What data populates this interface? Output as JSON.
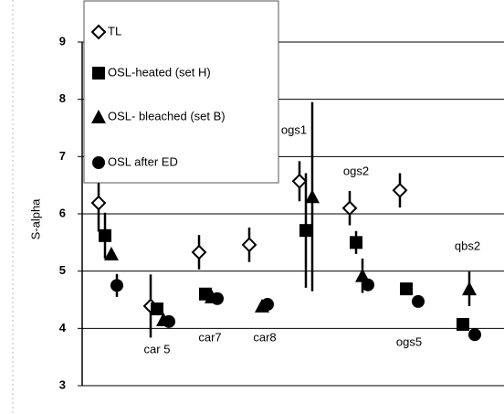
{
  "chart_data": {
    "type": "scatter",
    "y_label": "S-alpha",
    "categories": [
      null,
      "car 5",
      "car7",
      "car8",
      "ogs1",
      "ogs2",
      "ogs5",
      "qbs2"
    ],
    "ylim": [
      3,
      9
    ],
    "yticks": [
      3,
      4,
      5,
      6,
      7,
      8,
      9
    ],
    "grid": true,
    "series": [
      {
        "name": "TL",
        "marker": "diamond-open",
        "color": "#000000",
        "values": [
          6.19,
          4.39,
          5.33,
          5.46,
          6.57,
          6.1,
          6.41,
          null
        ],
        "errors": [
          0.5,
          0.55,
          0.3,
          0.3,
          0.35,
          0.3,
          0.3,
          null
        ]
      },
      {
        "name": "OSL-heated (set H)",
        "marker": "square",
        "color": "#000000",
        "values": [
          5.62,
          4.34,
          4.6,
          null,
          5.71,
          5.5,
          4.69,
          4.07
        ],
        "errors": [
          0.4,
          null,
          null,
          null,
          1.0,
          0.2,
          null,
          null
        ]
      },
      {
        "name": "OSL- bleached (set B)",
        "marker": "triangle",
        "color": "#000000",
        "values": [
          5.3,
          4.15,
          4.55,
          4.39,
          6.3,
          4.92,
          null,
          4.69
        ],
        "errors": [
          null,
          null,
          null,
          null,
          1.65,
          0.3,
          null,
          0.3
        ]
      },
      {
        "name": "OSL after ED",
        "marker": "circle",
        "color": "#000000",
        "values": [
          4.75,
          4.12,
          4.52,
          4.42,
          null,
          4.76,
          4.47,
          3.89
        ],
        "errors": [
          0.2,
          null,
          null,
          null,
          null,
          null,
          null,
          null
        ]
      }
    ]
  }
}
